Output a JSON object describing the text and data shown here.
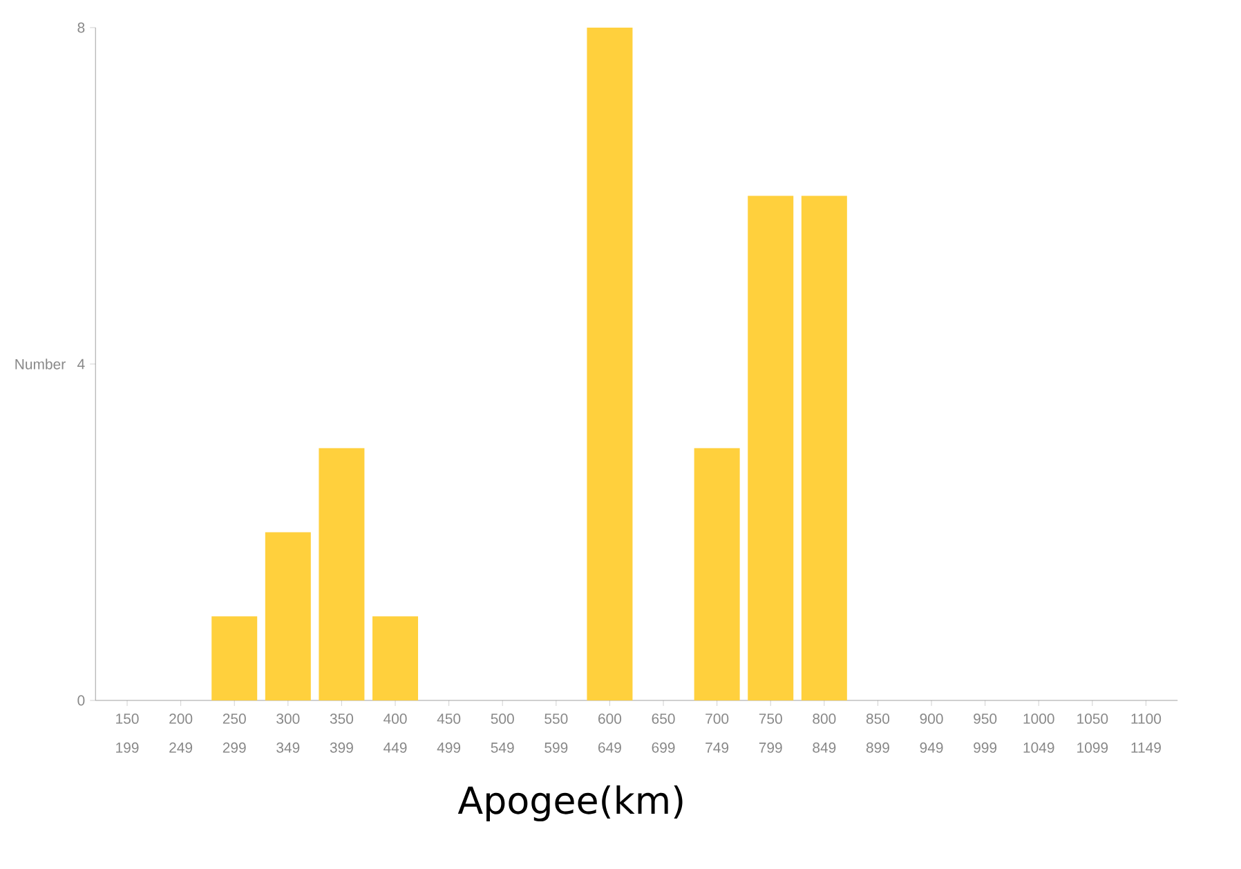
{
  "chart_data": {
    "type": "bar",
    "xlabel": "Apogee(km)",
    "ylabel": "Number",
    "categories": [
      "150 199",
      "200 249",
      "250 299",
      "300 349",
      "350 399",
      "400 449",
      "450 499",
      "500 549",
      "550 599",
      "600 649",
      "650 699",
      "700 749",
      "750 799",
      "800 849",
      "850 899",
      "900 949",
      "950 999",
      "1000 1049",
      "1050 1099",
      "1100 1149"
    ],
    "values": [
      0,
      0,
      1,
      2,
      3,
      1,
      0,
      0,
      0,
      8,
      0,
      3,
      6,
      6,
      0,
      0,
      0,
      0,
      0,
      0
    ],
    "color": "#ffd03d",
    "ylim": [
      0,
      8
    ],
    "yticks": [
      0,
      4,
      8
    ]
  }
}
